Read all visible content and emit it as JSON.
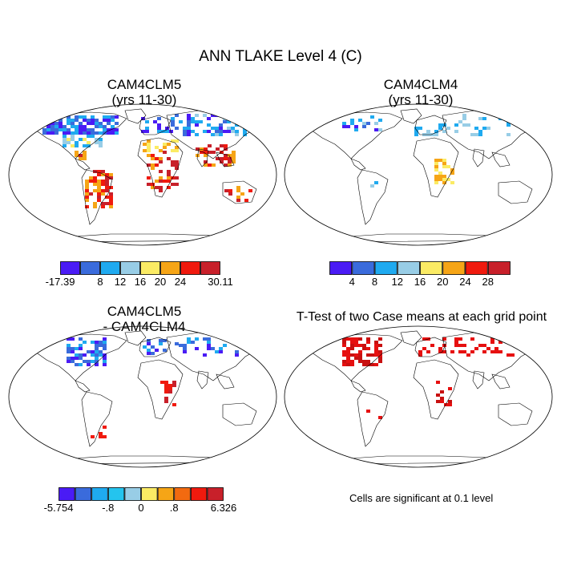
{
  "figure": {
    "title": "ANN TLAKE Level 4 (C)",
    "note": "Cells are significant at 0.1 level"
  },
  "panels": [
    {
      "title_line1": "CAM4CLM5",
      "title_line2": "(yrs 11-30)"
    },
    {
      "title_line1": "CAM4CLM4",
      "title_line2": "(yrs 11-30)"
    },
    {
      "title_line1": "CAM4CLM5",
      "title_line2": "- CAM4CLM4"
    },
    {
      "title_line1": "T-Test of two Case means at each grid point",
      "title_line2": ""
    }
  ],
  "colorbars": [
    {
      "colors": [
        "#4a1bf5",
        "#3a6bdc",
        "#1faaf0",
        "#98cde6",
        "#fbeb64",
        "#f6a516",
        "#f01a0e",
        "#c8202a"
      ],
      "labels": [
        "-17.39",
        "8",
        "12",
        "16",
        "20",
        "24",
        "30.11"
      ]
    },
    {
      "colors": [
        "#4a1bf5",
        "#3a6bdc",
        "#1faaf0",
        "#98cde6",
        "#fbeb64",
        "#f6a516",
        "#f01a0e",
        "#c8202a"
      ],
      "labels": [
        "4",
        "8",
        "12",
        "16",
        "20",
        "24",
        "28"
      ]
    },
    {
      "colors": [
        "#4a1bf5",
        "#3a6bdc",
        "#1faaf0",
        "#24c4ee",
        "#98cde6",
        "#fbeb64",
        "#f6a516",
        "#f26a10",
        "#f01a0e",
        "#c8202a"
      ],
      "labels": [
        "-5.754",
        "-.8",
        "0",
        ".8",
        "6.326"
      ]
    }
  ],
  "colors": {
    "coast": "#000000",
    "cold": "#3a3ae6",
    "warm": "#e0201a",
    "significant": "#e61010"
  }
}
